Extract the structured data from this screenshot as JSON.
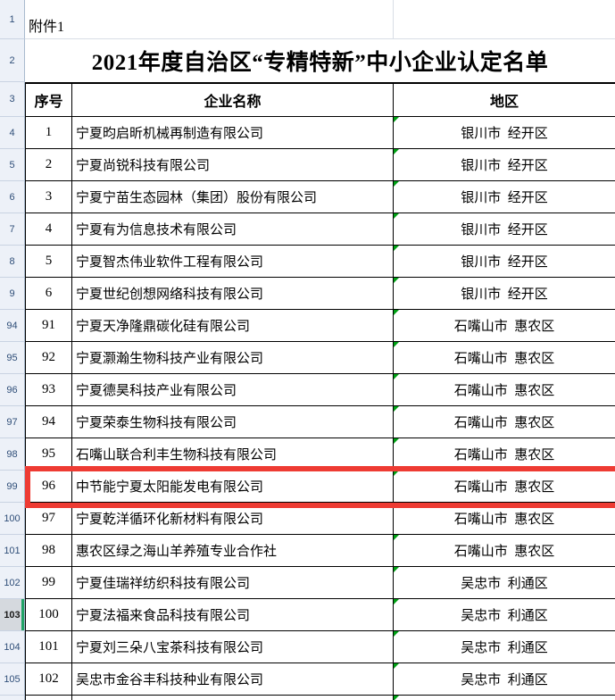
{
  "attachment": {
    "label": "附件1"
  },
  "title": "2021年度自治区“专精特新”中小企业认定名单",
  "gutter_rows": [
    "1",
    "2",
    "3"
  ],
  "header": {
    "serial": "序号",
    "company": "企业名称",
    "region": "地区"
  },
  "rows": [
    {
      "row_num": "4",
      "serial": "1",
      "company": "宁夏昀启昕机械再制造有限公司",
      "region": "银川市  经开区",
      "flag": true
    },
    {
      "row_num": "5",
      "serial": "2",
      "company": "宁夏尚锐科技有限公司",
      "region": "银川市  经开区",
      "flag": true
    },
    {
      "row_num": "6",
      "serial": "3",
      "company": "宁夏宁苗生态园林（集团）股份有限公司",
      "region": "银川市  经开区",
      "flag": true
    },
    {
      "row_num": "7",
      "serial": "4",
      "company": "宁夏有为信息技术有限公司",
      "region": "银川市  经开区",
      "flag": true
    },
    {
      "row_num": "8",
      "serial": "5",
      "company": "宁夏智杰伟业软件工程有限公司",
      "region": "银川市  经开区",
      "flag": true
    },
    {
      "row_num": "9",
      "serial": "6",
      "company": "宁夏世纪创想网络科技有限公司",
      "region": "银川市  经开区",
      "flag": true
    },
    {
      "row_num": "94",
      "serial": "91",
      "company": "宁夏天净隆鼎碳化硅有限公司",
      "region": "石嘴山市  惠农区",
      "flag": true
    },
    {
      "row_num": "95",
      "serial": "92",
      "company": "宁夏灏瀚生物科技产业有限公司",
      "region": "石嘴山市  惠农区",
      "flag": true
    },
    {
      "row_num": "96",
      "serial": "93",
      "company": "宁夏德昊科技产业有限公司",
      "region": "石嘴山市  惠农区",
      "flag": true
    },
    {
      "row_num": "97",
      "serial": "94",
      "company": "宁夏荣泰生物科技有限公司",
      "region": "石嘴山市  惠农区",
      "flag": true
    },
    {
      "row_num": "98",
      "serial": "95",
      "company": "石嘴山联合利丰生物科技有限公司",
      "region": "石嘴山市  惠农区",
      "flag": true
    },
    {
      "row_num": "99",
      "serial": "96",
      "company": "中节能宁夏太阳能发电有限公司",
      "region": "石嘴山市  惠农区",
      "flag": true,
      "highlighted": true
    },
    {
      "row_num": "100",
      "serial": "97",
      "company": "宁夏乾洋循环化新材料有限公司",
      "region": "石嘴山市  惠农区",
      "flag": true
    },
    {
      "row_num": "101",
      "serial": "98",
      "company": "惠农区绿之海山羊养殖专业合作社",
      "region": "石嘴山市  惠农区",
      "flag": true
    },
    {
      "row_num": "102",
      "serial": "99",
      "company": "宁夏佳瑞祥纺织科技有限公司",
      "region": "吴忠市  利通区",
      "flag": true
    },
    {
      "row_num": "103",
      "serial": "100",
      "company": "宁夏法福来食品科技有限公司",
      "region": "吴忠市  利通区",
      "flag": true
    },
    {
      "row_num": "104",
      "serial": "101",
      "company": "宁夏刘三朵八宝茶科技有限公司",
      "region": "吴忠市  利通区",
      "flag": true
    },
    {
      "row_num": "105",
      "serial": "102",
      "company": "吴忠市金谷丰科技种业有限公司",
      "region": "吴忠市  利通区",
      "flag": true
    }
  ],
  "annotation": {
    "type": "red-box",
    "target_row": "99",
    "color": "#ee3b33"
  },
  "selection": {
    "selected_row": "103",
    "accent_color": "#21a366"
  },
  "colors": {
    "annotation_red": "#ee3b33",
    "flag_green": "#00a014",
    "selection_green": "#21a366",
    "gutter_bg": "#edf1f8",
    "gutter_bg_selected": "#d5d9de",
    "gutter_text": "#2f4e78",
    "gutter_border": "#c9d3e2",
    "gutter_edge": "#a9bace",
    "gridline": "#d9dee6",
    "table_border": "#000000",
    "cell_text": "#000000"
  }
}
